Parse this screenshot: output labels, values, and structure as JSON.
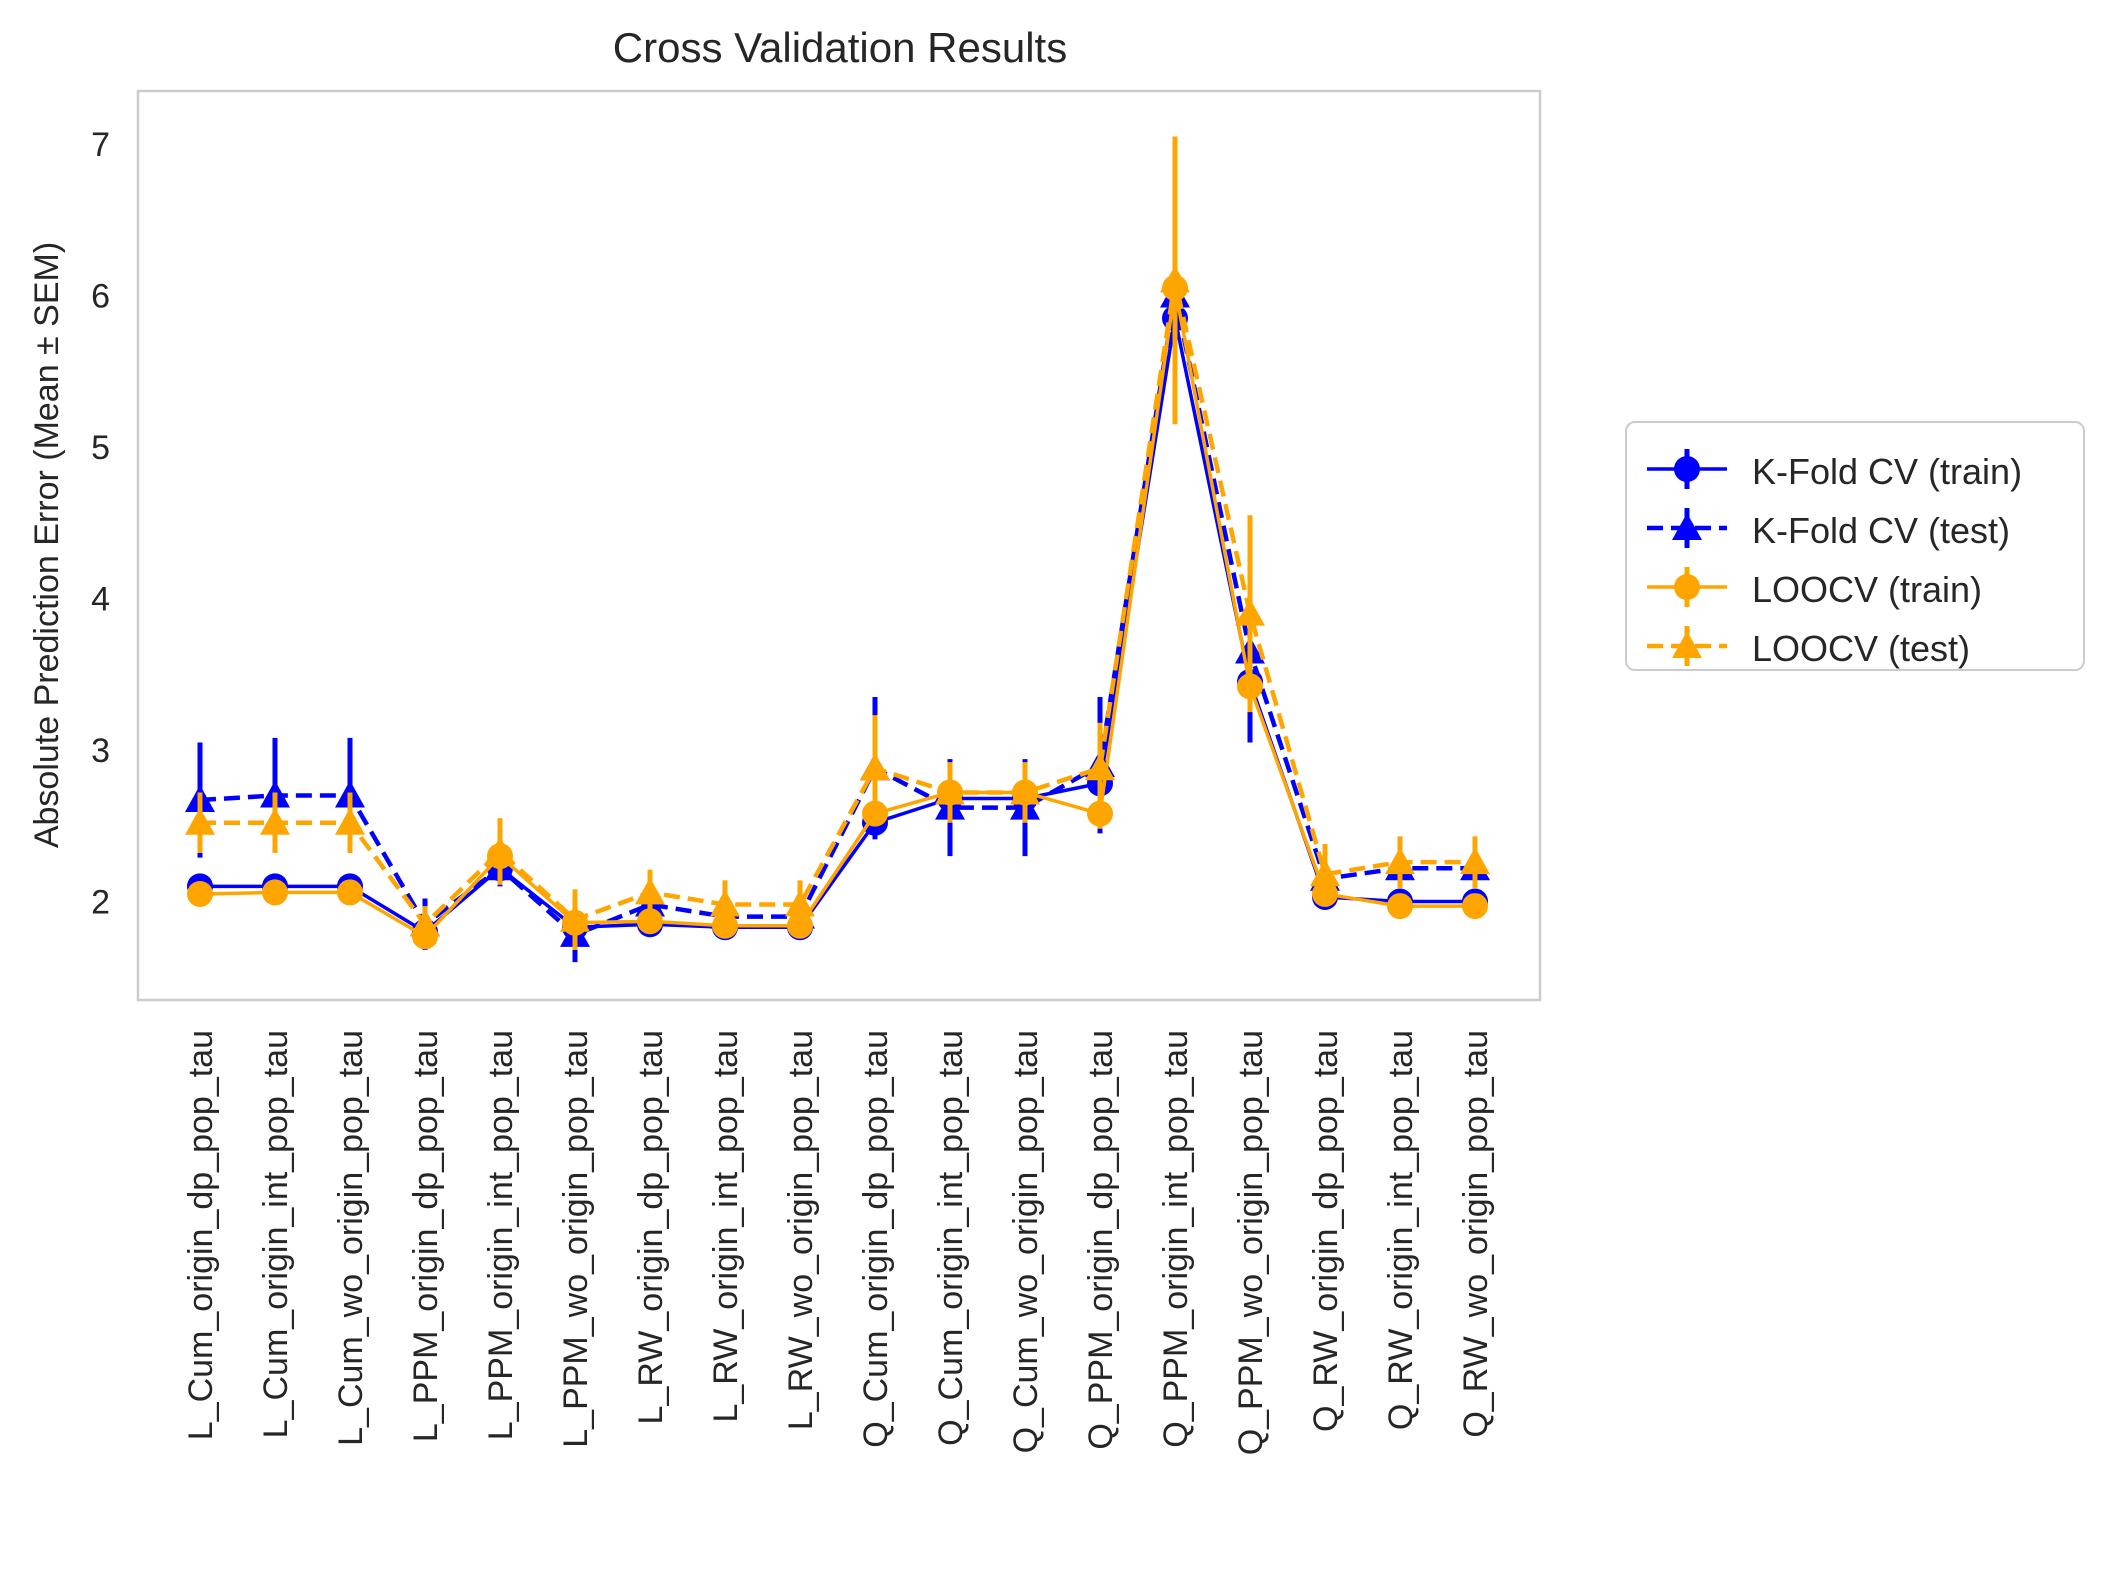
{
  "chart_data": {
    "type": "line",
    "title": "Cross Validation Results",
    "xlabel": "",
    "ylabel": "Absolute Prediction Error (Mean ± SEM)",
    "ylim": [
      1.35,
      7.35
    ],
    "yticks": [
      2,
      3,
      4,
      5,
      6,
      7
    ],
    "grid": false,
    "legend_position": "right",
    "categories": [
      "L_Cum_origin_dp_pop_tau",
      "L_Cum_origin_int_pop_tau",
      "L_Cum_wo_origin_pop_tau",
      "L_PPM_origin_dp_pop_tau",
      "L_PPM_origin_int_pop_tau",
      "L_PPM_wo_origin_pop_tau",
      "L_RW_origin_dp_pop_tau",
      "L_RW_origin_int_pop_tau",
      "L_RW_wo_origin_pop_tau",
      "Q_Cum_origin_dp_pop_tau",
      "Q_Cum_origin_int_pop_tau",
      "Q_Cum_wo_origin_pop_tau",
      "Q_PPM_origin_dp_pop_tau",
      "Q_PPM_origin_int_pop_tau",
      "Q_PPM_wo_origin_pop_tau",
      "Q_RW_origin_dp_pop_tau",
      "Q_RW_origin_int_pop_tau",
      "Q_RW_wo_origin_pop_tau"
    ],
    "series": [
      {
        "name": "K-Fold CV (train)",
        "color": "#0000ff",
        "marker": "circle",
        "linestyle": "solid",
        "values": [
          2.1,
          2.1,
          2.1,
          1.8,
          2.22,
          1.83,
          1.85,
          1.83,
          1.83,
          2.52,
          2.68,
          2.68,
          2.78,
          5.85,
          3.45,
          2.03,
          2.0,
          2.0
        ],
        "sem": [
          0.05,
          0.05,
          0.05,
          0.03,
          0.04,
          0.03,
          0.03,
          0.03,
          0.03,
          0.06,
          0.06,
          0.06,
          0.08,
          0.1,
          0.08,
          0.03,
          0.03,
          0.03
        ]
      },
      {
        "name": "K-Fold CV (test)",
        "color": "#0000ff",
        "marker": "triangle",
        "linestyle": "dashed",
        "values": [
          2.67,
          2.7,
          2.7,
          1.85,
          2.22,
          1.78,
          1.98,
          1.9,
          1.9,
          2.88,
          2.62,
          2.62,
          2.9,
          6.0,
          3.65,
          2.15,
          2.22,
          2.22
        ],
        "sem": [
          0.38,
          0.38,
          0.38,
          0.17,
          0.12,
          0.18,
          0.12,
          0.15,
          0.15,
          0.47,
          0.32,
          0.32,
          0.45,
          0.6,
          0.6,
          0.15,
          0.1,
          0.1
        ]
      },
      {
        "name": "LOOCV (train)",
        "color": "#ffa500",
        "marker": "circle",
        "linestyle": "solid",
        "values": [
          2.05,
          2.06,
          2.06,
          1.77,
          2.3,
          1.86,
          1.87,
          1.84,
          1.84,
          2.58,
          2.72,
          2.72,
          2.58,
          6.05,
          3.42,
          2.05,
          1.97,
          1.97
        ],
        "sem": [
          0.05,
          0.05,
          0.05,
          0.03,
          0.05,
          0.03,
          0.03,
          0.03,
          0.03,
          0.06,
          0.06,
          0.06,
          0.1,
          0.15,
          0.08,
          0.03,
          0.03,
          0.03
        ]
      },
      {
        "name": "LOOCV (test)",
        "color": "#ffa500",
        "marker": "triangle",
        "linestyle": "dashed",
        "values": [
          2.52,
          2.52,
          2.52,
          1.85,
          2.33,
          1.88,
          2.06,
          1.98,
          1.98,
          2.88,
          2.72,
          2.72,
          2.88,
          6.1,
          3.9,
          2.18,
          2.26,
          2.26
        ],
        "sem": [
          0.2,
          0.2,
          0.2,
          0.12,
          0.22,
          0.2,
          0.15,
          0.16,
          0.16,
          0.35,
          0.2,
          0.2,
          0.3,
          0.95,
          0.65,
          0.2,
          0.17,
          0.17
        ]
      }
    ]
  }
}
